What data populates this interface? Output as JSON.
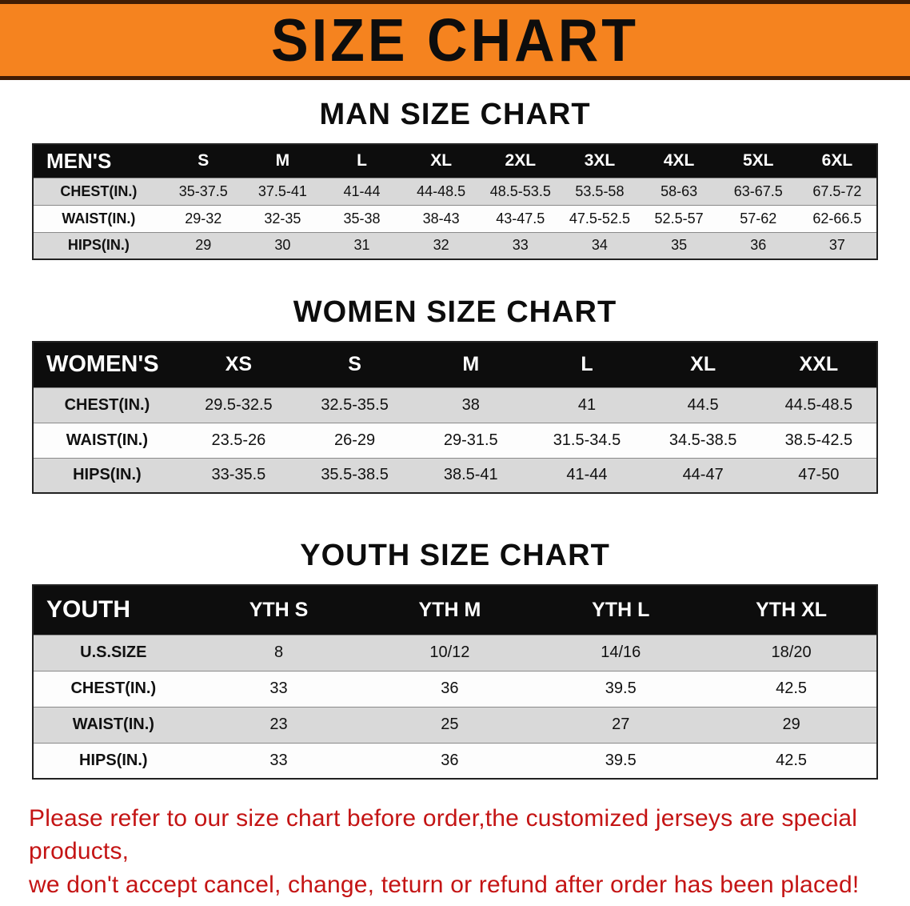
{
  "banner": {
    "title": "SIZE CHART"
  },
  "colors": {
    "banner_bg": "#f5831f",
    "header_bg": "#0d0d0d",
    "shaded_row": "#d9d9d9",
    "disclaimer_text": "#c41414"
  },
  "sections": {
    "men": {
      "heading": "MAN SIZE CHART",
      "table": {
        "header": [
          "MEN'S",
          "S",
          "M",
          "L",
          "XL",
          "2XL",
          "3XL",
          "4XL",
          "5XL",
          "6XL"
        ],
        "rows": [
          [
            "CHEST(IN.)",
            "35-37.5",
            "37.5-41",
            "41-44",
            "44-48.5",
            "48.5-53.5",
            "53.5-58",
            "58-63",
            "63-67.5",
            "67.5-72"
          ],
          [
            "WAIST(IN.)",
            "29-32",
            "32-35",
            "35-38",
            "38-43",
            "43-47.5",
            "47.5-52.5",
            "52.5-57",
            "57-62",
            "62-66.5"
          ],
          [
            "HIPS(IN.)",
            "29",
            "30",
            "31",
            "32",
            "33",
            "34",
            "35",
            "36",
            "37"
          ]
        ]
      }
    },
    "women": {
      "heading": "WOMEN SIZE CHART",
      "table": {
        "header": [
          "WOMEN'S",
          "XS",
          "S",
          "M",
          "L",
          "XL",
          "XXL"
        ],
        "rows": [
          [
            "CHEST(IN.)",
            "29.5-32.5",
            "32.5-35.5",
            "38",
            "41",
            "44.5",
            "44.5-48.5"
          ],
          [
            "WAIST(IN.)",
            "23.5-26",
            "26-29",
            "29-31.5",
            "31.5-34.5",
            "34.5-38.5",
            "38.5-42.5"
          ],
          [
            "HIPS(IN.)",
            "33-35.5",
            "35.5-38.5",
            "38.5-41",
            "41-44",
            "44-47",
            "47-50"
          ]
        ]
      }
    },
    "youth": {
      "heading": "YOUTH SIZE CHART",
      "table": {
        "header": [
          "YOUTH",
          "YTH S",
          "YTH M",
          "YTH L",
          "YTH XL"
        ],
        "rows": [
          [
            "U.S.SIZE",
            "8",
            "10/12",
            "14/16",
            "18/20"
          ],
          [
            "CHEST(IN.)",
            "33",
            "36",
            "39.5",
            "42.5"
          ],
          [
            "WAIST(IN.)",
            "23",
            "25",
            "27",
            "29"
          ],
          [
            "HIPS(IN.)",
            "33",
            "36",
            "39.5",
            "42.5"
          ]
        ]
      }
    }
  },
  "disclaimer": {
    "line1": "Please refer to our size chart before order,the customized jerseys are special products,",
    "line2": "we don't accept cancel, change, teturn or refund after order has been placed!"
  }
}
